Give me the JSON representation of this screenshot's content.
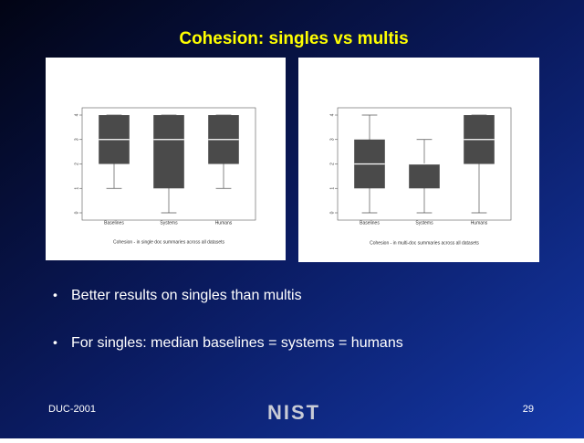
{
  "title": "Cohesion: singles vs multis",
  "charts": [
    {
      "type": "box",
      "categories": [
        "Baselines",
        "Systems",
        "Humans"
      ],
      "boxes": [
        {
          "low": 1,
          "q1": 2,
          "median": 3,
          "q3": 4,
          "high": 4
        },
        {
          "low": 0,
          "q1": 1,
          "median": 3,
          "q3": 4,
          "high": 4
        },
        {
          "low": 1,
          "q1": 2,
          "median": 3,
          "q3": 4,
          "high": 4
        }
      ],
      "ylim": [
        0,
        4
      ],
      "yticks": [
        0,
        1,
        2,
        3,
        4
      ],
      "color": "#4a4a4a",
      "caption": "Cohesion - in single doc summaries across all datasets"
    },
    {
      "type": "box",
      "categories": [
        "Baselines",
        "Systems",
        "Humans"
      ],
      "boxes": [
        {
          "low": 0,
          "q1": 1,
          "median": 2,
          "q3": 3,
          "high": 4
        },
        {
          "low": 0,
          "q1": 1,
          "median": 2,
          "q3": 2,
          "high": 3
        },
        {
          "low": 0,
          "q1": 2,
          "median": 3,
          "q3": 4,
          "high": 4
        }
      ],
      "ylim": [
        0,
        4
      ],
      "yticks": [
        0,
        1,
        2,
        3,
        4
      ],
      "color": "#4a4a4a",
      "caption": "Cohesion - in multi-doc summaries across all datasets"
    }
  ],
  "bullets": [
    "Better results on singles than multis",
    "For singles: median baselines = systems = humans"
  ],
  "footer": {
    "left": "DUC-2001",
    "logo": "NIST",
    "page": "29"
  }
}
